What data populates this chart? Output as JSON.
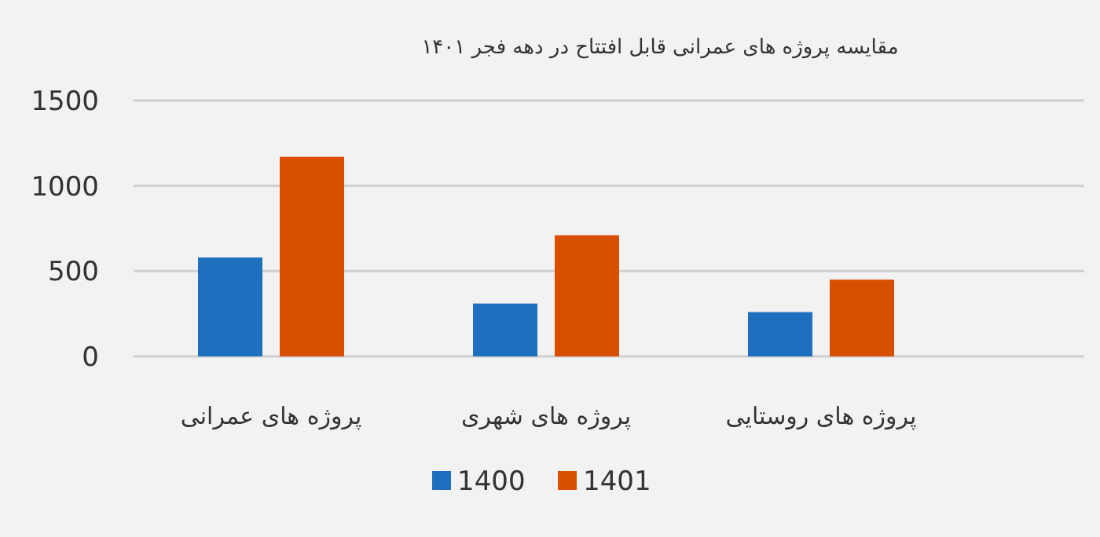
{
  "chart_data": {
    "type": "bar",
    "title": "مقایسه پروژه های عمرانی قابل افتتاح در دهه فجر ۱۴۰۱",
    "categories": [
      "پروژه های عمرانی",
      "پروژه های شهری",
      "پروژه های روستایی"
    ],
    "series": [
      {
        "name": "1400",
        "color": "#1f6fbf",
        "values": [
          580,
          310,
          260
        ]
      },
      {
        "name": "1401",
        "color": "#d94f00",
        "values": [
          1170,
          710,
          450
        ]
      }
    ],
    "ylim": [
      0,
      1500
    ],
    "yticks": [
      0,
      500,
      1000,
      1500
    ],
    "grid": "y",
    "legend": "bottom"
  }
}
